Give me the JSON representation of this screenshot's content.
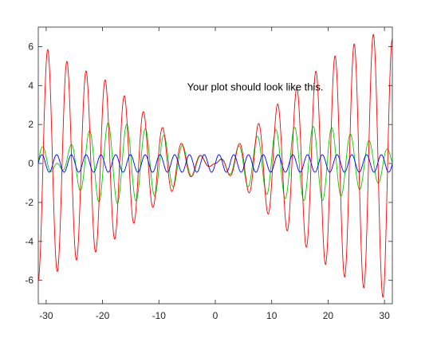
{
  "chart_data": {
    "type": "line",
    "title": "",
    "xlabel": "",
    "ylabel": "",
    "xlim": [
      -31.4,
      31.4
    ],
    "ylim": [
      -7.2,
      7
    ],
    "grid": false,
    "x_ticks": [
      -30,
      -20,
      -10,
      0,
      10,
      20,
      30
    ],
    "y_ticks": [
      -6,
      -4,
      -2,
      0,
      2,
      4,
      6
    ],
    "x_tick_labels": [
      "-30",
      "-20",
      "-10",
      "0",
      "10",
      "20",
      "30"
    ],
    "y_tick_labels": [
      "-6",
      "-4",
      "-2",
      "0",
      "2",
      "4",
      "6"
    ],
    "annotation": {
      "text": "Your plot should look like this.",
      "x": -5,
      "y": 4
    },
    "series": [
      {
        "color": "#00cc00",
        "x": [
          -31.4,
          -30,
          -25,
          -20,
          -15,
          -10,
          -5,
          0,
          5,
          10,
          15,
          20,
          25,
          30,
          31.4
        ],
        "values": [
          -0.95,
          -0.8,
          1.2,
          2.1,
          2.0,
          1.6,
          0.8,
          0.0,
          1.1,
          1.7,
          1.9,
          1.9,
          1.4,
          0.9,
          0.5
        ]
      },
      {
        "color": "#ff0000",
        "x": [
          -31.4,
          -30,
          -25,
          -20,
          -15,
          -10,
          -5,
          0,
          5,
          10,
          15,
          20,
          25,
          30,
          31.4
        ],
        "values": [
          6.0,
          5.9,
          5.0,
          4.4,
          3.2,
          2.0,
          0.8,
          0.0,
          1.2,
          2.8,
          4.0,
          5.3,
          6.2,
          6.9,
          6.4
        ]
      },
      {
        "color": "#0000ff",
        "x": [
          -31.4,
          -30,
          -25,
          -20,
          -15,
          -10,
          -5,
          0,
          5,
          10,
          15,
          20,
          25,
          30,
          31.4
        ],
        "values": [
          0.45,
          0.45,
          0.45,
          0.45,
          0.45,
          0.45,
          0.45,
          0.45,
          0.45,
          0.45,
          0.45,
          0.45,
          0.45,
          0.45,
          0.45
        ]
      }
    ]
  }
}
